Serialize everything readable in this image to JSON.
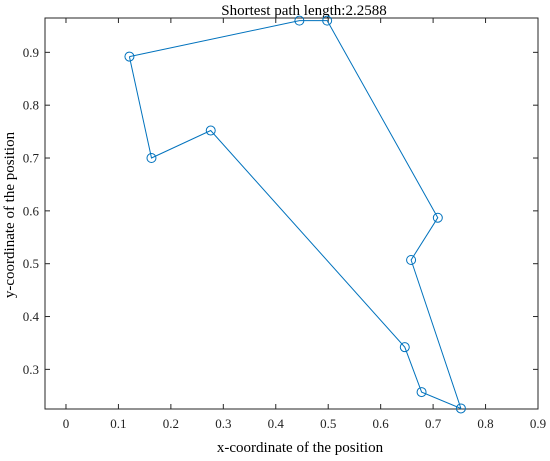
{
  "chart_data": {
    "type": "line",
    "title": "Shortest path length:2.2588",
    "xlabel": "x-coordinate of the position",
    "ylabel": "y-coordinate of the position",
    "xlim": [
      -0.04,
      0.9
    ],
    "ylim": [
      0.225,
      0.965
    ],
    "x_ticks": [
      0,
      0.1,
      0.2,
      0.3,
      0.4,
      0.5,
      0.6,
      0.7,
      0.8,
      0.9
    ],
    "x_tick_labels": [
      "0",
      "0.1",
      "0.2",
      "0.3",
      "0.4",
      "0.5",
      "0.6",
      "0.7",
      "0.8",
      "0.9"
    ],
    "y_ticks": [
      0.3,
      0.4,
      0.5,
      0.6,
      0.7,
      0.8,
      0.9
    ],
    "y_tick_labels": [
      "0.3",
      "0.4",
      "0.5",
      "0.6",
      "0.7",
      "0.8",
      "0.9"
    ],
    "grid": false,
    "closed_path": true,
    "series": [
      {
        "marker": "circle",
        "color": "#0072BD",
        "x": [
          0.121,
          0.445,
          0.498,
          0.709,
          0.658,
          0.753,
          0.678,
          0.646,
          0.276,
          0.163
        ],
        "y": [
          0.892,
          0.96,
          0.96,
          0.587,
          0.507,
          0.226,
          0.257,
          0.342,
          0.752,
          0.7
        ]
      }
    ]
  }
}
